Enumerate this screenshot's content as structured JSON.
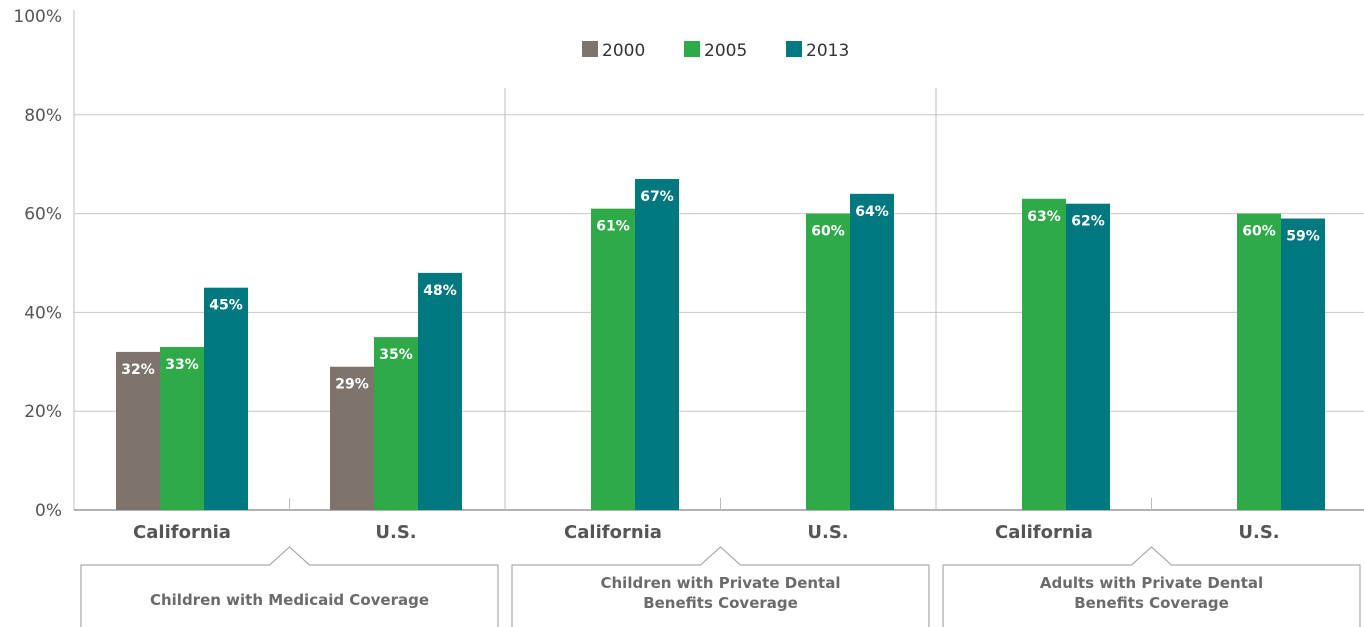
{
  "chart_data": {
    "type": "bar",
    "y_axis": {
      "ticks": [
        "0%",
        "20%",
        "40%",
        "60%",
        "80%",
        "100%"
      ],
      "ylim": [
        0,
        100
      ]
    },
    "grid": true,
    "legend": {
      "position": "top-center",
      "entries": [
        "2000",
        "2005",
        "2013"
      ]
    },
    "colors": {
      "2000": "#7f736d",
      "2005": "#2eab48",
      "2013": "#00787f"
    },
    "groups": [
      {
        "label_lines": [
          "Children with Medicaid Coverage"
        ],
        "categories": [
          {
            "label": "California",
            "values": [
              {
                "series": "2000",
                "value": 32,
                "label": "32%"
              },
              {
                "series": "2005",
                "value": 33,
                "label": "33%"
              },
              {
                "series": "2013",
                "value": 45,
                "label": "45%"
              }
            ]
          },
          {
            "label": "U.S.",
            "values": [
              {
                "series": "2000",
                "value": 29,
                "label": "29%"
              },
              {
                "series": "2005",
                "value": 35,
                "label": "35%"
              },
              {
                "series": "2013",
                "value": 48,
                "label": "48%"
              }
            ]
          }
        ]
      },
      {
        "label_lines": [
          "Children with Private Dental",
          "Benefits Coverage"
        ],
        "categories": [
          {
            "label": "California",
            "values": [
              {
                "series": "2005",
                "value": 61,
                "label": "61%"
              },
              {
                "series": "2013",
                "value": 67,
                "label": "67%"
              }
            ]
          },
          {
            "label": "U.S.",
            "values": [
              {
                "series": "2005",
                "value": 60,
                "label": "60%"
              },
              {
                "series": "2013",
                "value": 64,
                "label": "64%"
              }
            ]
          }
        ]
      },
      {
        "label_lines": [
          "Adults with Private Dental",
          "Benefits Coverage"
        ],
        "categories": [
          {
            "label": "California",
            "values": [
              {
                "series": "2005",
                "value": 63,
                "label": "63%"
              },
              {
                "series": "2013",
                "value": 62,
                "label": "62%"
              }
            ]
          },
          {
            "label": "U.S.",
            "values": [
              {
                "series": "2005",
                "value": 60,
                "label": "60%"
              },
              {
                "series": "2013",
                "value": 59,
                "label": "59%"
              }
            ]
          }
        ]
      }
    ]
  }
}
